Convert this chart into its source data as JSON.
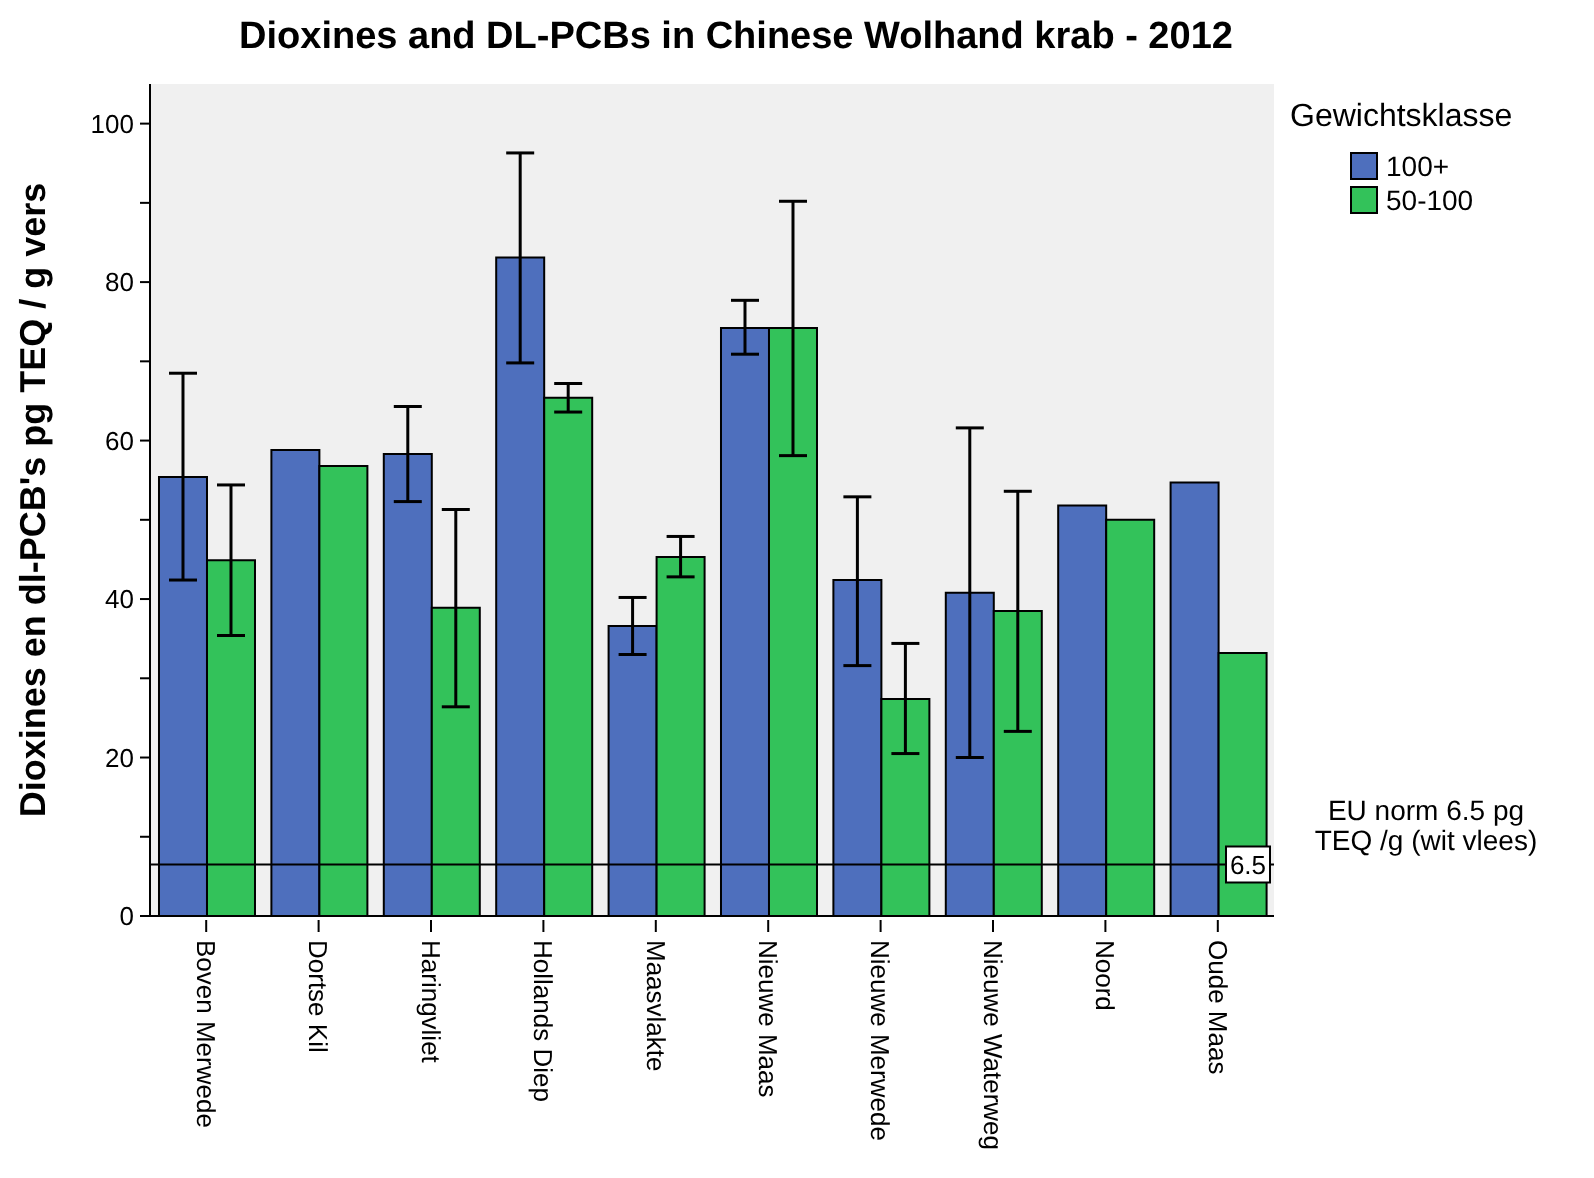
{
  "chart_data": {
    "type": "bar",
    "title": "Dioxines and DL-PCBs in Chinese Wolhand krab - 2012",
    "ylabel": "Dioxines en dl-PCB's pg TEQ / g vers",
    "legend_title": "Gewichtsklasse",
    "legend": "top right",
    "categories": [
      "Boven Merwede",
      "Dortse Kil",
      "Haringvliet",
      "Hollands Diep",
      "Maasvlakte",
      "Nieuwe Maas",
      "Nieuwe Merwede",
      "Nieuwe Waterweg",
      "Noord",
      "Oude Maas"
    ],
    "series": [
      {
        "name": "100+",
        "color": "#4e6fbd",
        "values": [
          55.4,
          58.8,
          58.3,
          83.1,
          36.6,
          74.2,
          42.4,
          40.8,
          51.8,
          54.7
        ],
        "errors": [
          [
            42.4,
            68.5
          ],
          null,
          [
            52.3,
            64.3
          ],
          [
            69.8,
            96.3
          ],
          [
            33.0,
            40.2
          ],
          [
            70.9,
            77.7
          ],
          [
            31.6,
            52.9
          ],
          [
            20.0,
            61.6
          ],
          null,
          null
        ]
      },
      {
        "name": "50-100",
        "color": "#33c25a",
        "values": [
          44.9,
          56.8,
          38.9,
          65.4,
          45.3,
          74.2,
          27.4,
          38.5,
          50.0,
          33.2
        ],
        "errors": [
          [
            35.4,
            54.4
          ],
          null,
          [
            26.4,
            51.3
          ],
          [
            63.6,
            67.2
          ],
          [
            42.8,
            47.9
          ],
          [
            58.1,
            90.2
          ],
          [
            20.5,
            34.4
          ],
          [
            23.3,
            53.6
          ],
          null,
          null
        ]
      }
    ],
    "ylim": [
      0,
      105
    ],
    "yticks": [
      0,
      {
        "value": 10,
        "label": null
      },
      20,
      {
        "value": 30,
        "label": null
      },
      40,
      {
        "value": 50,
        "label": null
      },
      60,
      {
        "value": 70,
        "label": null
      },
      80,
      {
        "value": 90,
        "label": null
      },
      100
    ],
    "ref_lines": [
      {
        "axis": "y",
        "value": 6.5,
        "label": "6.5",
        "color": "#000000"
      }
    ],
    "annotations": [
      "EU norm 6.5 pg TEQ /g (wit vlees)"
    ]
  }
}
